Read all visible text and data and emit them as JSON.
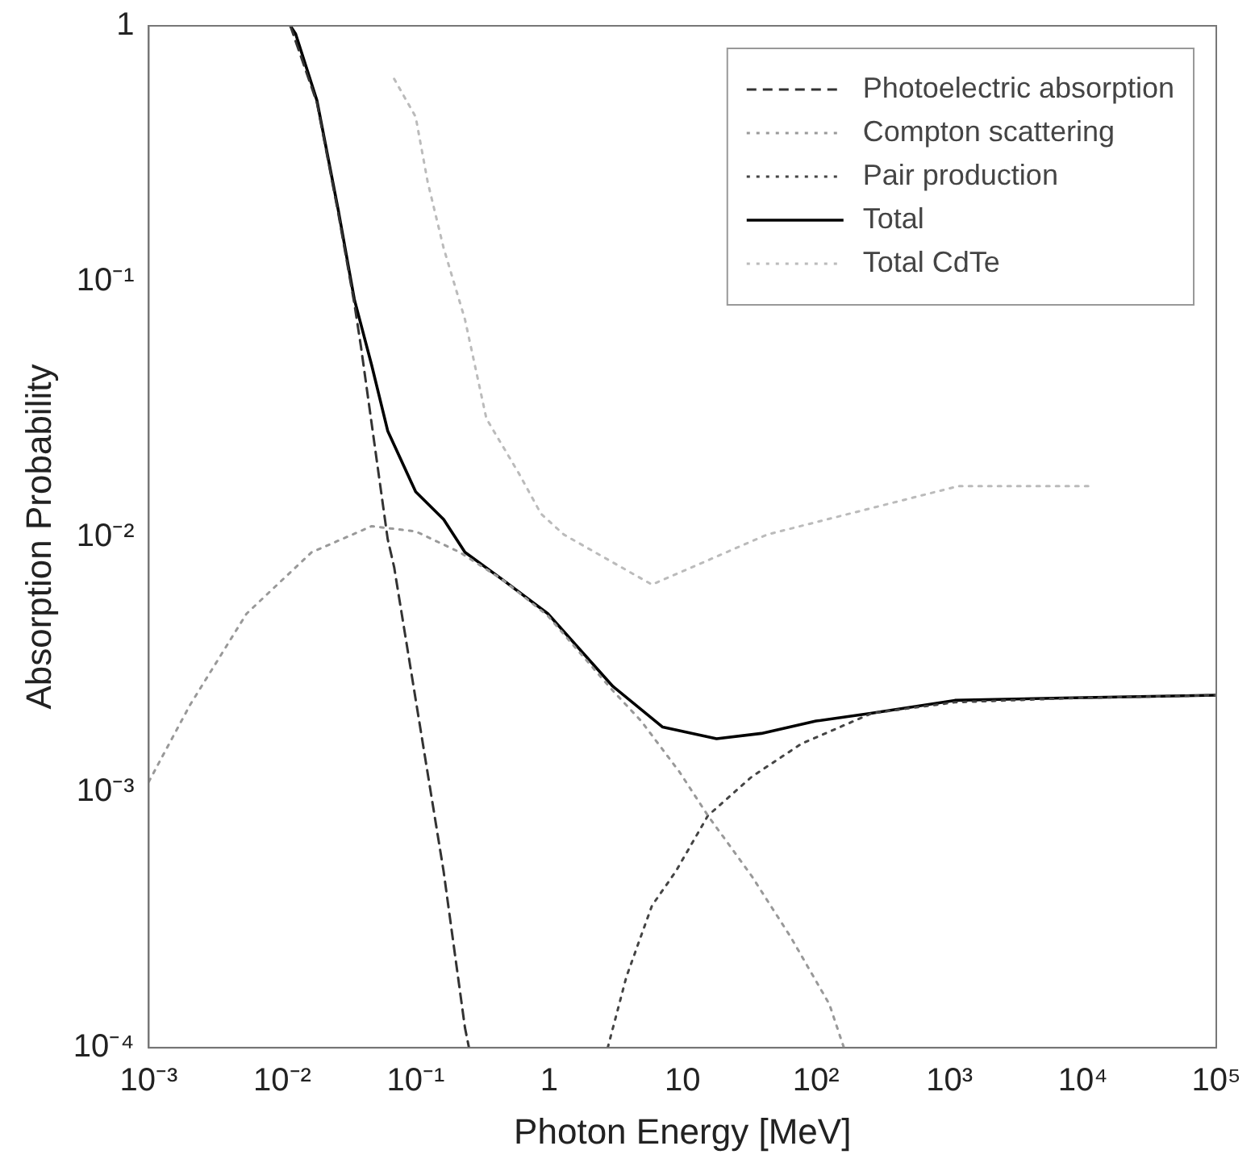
{
  "chart_data": {
    "type": "line",
    "xlabel": "Photon Energy [MeV]",
    "ylabel": "Absorption Probability",
    "log": "xy",
    "legend": "top right",
    "grid": false,
    "marker": "none",
    "xlim": [
      0.001,
      100000
    ],
    "ylim": [
      0.0001,
      1
    ],
    "xticks": [
      {
        "value": 0.001,
        "label": "10⁻³"
      },
      {
        "value": 0.01,
        "label": "10⁻²"
      },
      {
        "value": 0.1,
        "label": "10⁻¹"
      },
      1,
      10,
      {
        "value": 100,
        "label": "10²"
      },
      {
        "value": 1000,
        "label": "10³"
      },
      {
        "value": 10000,
        "label": "10⁴"
      },
      {
        "value": 100000,
        "label": "10⁵"
      }
    ],
    "yticks": [
      {
        "value": 0.0001,
        "label": "10⁻⁴"
      },
      {
        "value": 0.001,
        "label": "10⁻³"
      },
      {
        "value": 0.01,
        "label": "10⁻²"
      },
      {
        "value": 0.1,
        "label": "10⁻¹"
      },
      1
    ],
    "series": [
      {
        "name": "Photoelectric absorption",
        "color": "#333333",
        "line_style": "dashed",
        "x": [
          0.0115,
          0.0182,
          0.0263,
          0.0347,
          0.039,
          0.0617,
          0.069,
          0.11,
          0.162,
          0.234,
          0.251
        ],
        "values": [
          1,
          0.5,
          0.185,
          0.082,
          0.055,
          0.0098,
          0.0076,
          0.0017,
          0.00049,
          0.00012,
          0.0001
        ]
      },
      {
        "name": "Compton scattering",
        "color": "#999999",
        "line_style": "dotted",
        "x": [
          0.001,
          0.00204,
          0.0054,
          0.0166,
          0.0468,
          0.1,
          0.214,
          0.447,
          0.98,
          3,
          4.9,
          9.5,
          15.5,
          33,
          65,
          126,
          162
        ],
        "values": [
          0.0011,
          0.0022,
          0.005,
          0.0087,
          0.011,
          0.0105,
          0.0087,
          0.0068,
          0.0049,
          0.0025,
          0.0019,
          0.0012,
          0.00081,
          0.00047,
          0.00027,
          0.000148,
          0.0001
        ]
      },
      {
        "name": "Pair production",
        "color": "#444444",
        "line_style": "dotted",
        "x": [
          2.75,
          3.8,
          5.9,
          8.9,
          15.5,
          33,
          78,
          263,
          1100,
          7080,
          100000
        ],
        "values": [
          0.0001,
          0.00019,
          0.00036,
          0.00049,
          0.00081,
          0.00115,
          0.00155,
          0.00204,
          0.00225,
          0.00233,
          0.0024
        ]
      },
      {
        "name": "Total",
        "color": "#000000",
        "line_style": "solid",
        "x": [
          0.0115,
          0.0126,
          0.0182,
          0.0263,
          0.0347,
          0.0468,
          0.0617,
          0.1,
          0.162,
          0.234,
          0.447,
          0.98,
          3,
          7.1,
          18,
          39,
          100,
          263,
          1100,
          7080,
          100000
        ],
        "values": [
          1,
          0.93,
          0.51,
          0.19,
          0.085,
          0.047,
          0.026,
          0.015,
          0.0117,
          0.0087,
          0.0068,
          0.005,
          0.0026,
          0.0018,
          0.00162,
          0.0017,
          0.0019,
          0.00204,
          0.00229,
          0.00234,
          0.0024
        ]
      },
      {
        "name": "Total CdTe",
        "color": "#bbbbbb",
        "line_style": "dotted",
        "x": [
          0.069,
          0.1,
          0.123,
          0.162,
          0.234,
          0.339,
          0.59,
          0.87,
          1.29,
          5.9,
          43,
          1175,
          11500
        ],
        "values": [
          0.62,
          0.44,
          0.245,
          0.135,
          0.071,
          0.029,
          0.0178,
          0.0123,
          0.0102,
          0.0065,
          0.0102,
          0.0158,
          0.0158
        ]
      }
    ]
  }
}
